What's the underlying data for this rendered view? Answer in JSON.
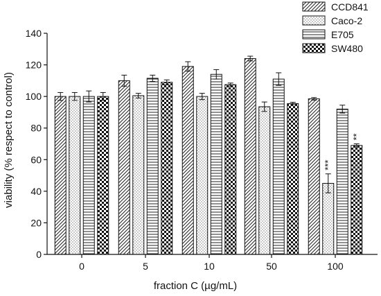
{
  "chart_data": {
    "type": "bar",
    "xlabel": "fraction C (µg/mL)",
    "ylabel": "viability (% respect to control)",
    "ylim": [
      0,
      140
    ],
    "yticks": [
      0,
      20,
      40,
      60,
      80,
      100,
      120,
      140
    ],
    "grid": false,
    "legend_position": "top-right",
    "categories": [
      "0",
      "5",
      "10",
      "50",
      "100"
    ],
    "series": [
      {
        "name": "CCD841",
        "pattern": "diagonal-hatch",
        "values": [
          100,
          110,
          119,
          124,
          98.5
        ],
        "errors": [
          2.5,
          3.5,
          3,
          1.5,
          0.8
        ]
      },
      {
        "name": "Caco-2",
        "pattern": "dots",
        "values": [
          100,
          100.5,
          100,
          93.5,
          45
        ],
        "errors": [
          2.5,
          1.5,
          2,
          3,
          6
        ]
      },
      {
        "name": "E705",
        "pattern": "horizontal-lines",
        "values": [
          100,
          111.5,
          114,
          111,
          92
        ],
        "errors": [
          3.5,
          2,
          3,
          4,
          2.5
        ]
      },
      {
        "name": "SW480",
        "pattern": "checker",
        "values": [
          100,
          109,
          107.5,
          95.5,
          69
        ],
        "errors": [
          2.5,
          1.5,
          1,
          0.8,
          1
        ]
      }
    ],
    "annotations": [
      {
        "category": "100",
        "series": "Caco-2",
        "text": "***"
      },
      {
        "category": "100",
        "series": "SW480",
        "text": "**"
      }
    ]
  }
}
